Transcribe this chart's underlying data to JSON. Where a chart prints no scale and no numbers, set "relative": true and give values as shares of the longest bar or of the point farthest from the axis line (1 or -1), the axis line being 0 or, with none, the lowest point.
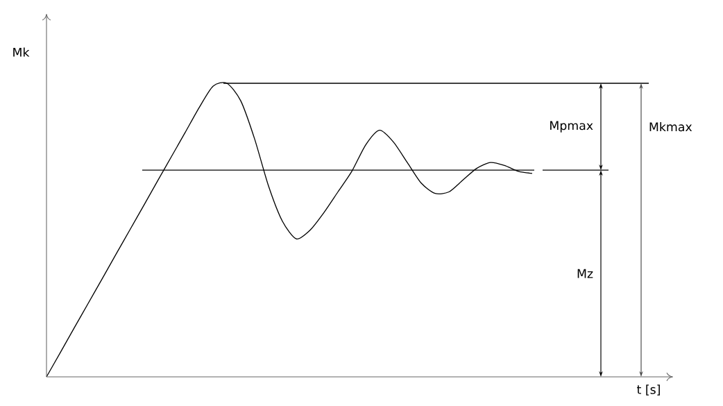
{
  "chart_data": {
    "type": "line",
    "relative": true,
    "xlabel": "t [s]",
    "ylabel": "Mk",
    "line_style": "solid",
    "categories": [
      null,
      null,
      null,
      null,
      null,
      null,
      null,
      null,
      null,
      null,
      null,
      null,
      null,
      null,
      null,
      null,
      null,
      null,
      null,
      null,
      null,
      null,
      null,
      null,
      null,
      null,
      null,
      null,
      null,
      null,
      null,
      null,
      null,
      null,
      null,
      null,
      null,
      null,
      null,
      null,
      null,
      null,
      null,
      null,
      null,
      null
    ],
    "series": [
      {
        "color": "#000000",
        "values": [
          0,
          0.083,
          0.167,
          0.25,
          0.333,
          0.417,
          0.5,
          0.583,
          0.667,
          0.75,
          0.833,
          0.917,
          0.99,
          1.0,
          0.94,
          0.81,
          0.65,
          0.53,
          0.47,
          0.5,
          0.56,
          0.63,
          0.7,
          0.79,
          0.84,
          0.8,
          0.73,
          0.66,
          0.625,
          0.63,
          0.67,
          0.71,
          0.73,
          0.72,
          0.7,
          0.693,
          null,
          null,
          null,
          null,
          null,
          null,
          null,
          null,
          null,
          null
        ]
      }
    ],
    "ref_lines": [
      {
        "axis": "y",
        "value": 1,
        "color": "#000000"
      },
      {
        "axis": "y",
        "value": 0.704,
        "color": "#000000"
      }
    ],
    "annotations": [
      "Mpmax",
      "Mz",
      "Mkmax"
    ]
  }
}
